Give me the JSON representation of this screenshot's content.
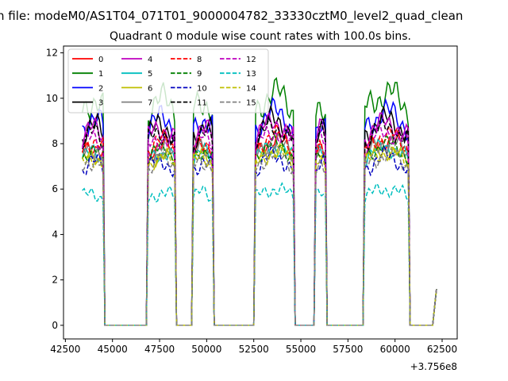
{
  "chart_data": {
    "type": "line",
    "suptitle": "n file: modeM0/AS1T04_071T01_9000004782_33330cztM0_level2_quad_clean",
    "title": "Quadrant 0 module wise count rates with 100.0s bins.",
    "xlabel": "",
    "ylabel": "",
    "x_offset_label": "+3.756e8",
    "xlim": [
      42400,
      63300
    ],
    "ylim": [
      -0.6,
      12.3
    ],
    "xticks": [
      42500,
      45000,
      47500,
      50000,
      52500,
      55000,
      57500,
      60000,
      62500
    ],
    "xtick_labels": [
      "42500",
      "45000",
      "47500",
      "50000",
      "52500",
      "55000",
      "57500",
      "60000",
      "62500"
    ],
    "yticks": [
      0,
      2,
      4,
      6,
      8,
      10,
      12
    ],
    "ytick_labels": [
      "0",
      "2",
      "4",
      "6",
      "8",
      "10",
      "12"
    ],
    "grid": false,
    "legend_placement": "top-left",
    "legend_ncol": 4,
    "segments": [
      [
        43400,
        44500
      ],
      [
        46900,
        48300
      ],
      [
        49300,
        50300
      ],
      [
        52600,
        54600
      ],
      [
        55800,
        56300
      ],
      [
        58400,
        60700
      ]
    ],
    "tail": [
      62000,
      62200
    ],
    "series": [
      {
        "name": "0",
        "color": "#ff0000",
        "dash": "solid",
        "level": 7.6,
        "amp": 0.45
      },
      {
        "name": "1",
        "color": "#008000",
        "dash": "solid",
        "level": 9.5,
        "amp": 0.8
      },
      {
        "name": "2",
        "color": "#0000ff",
        "dash": "solid",
        "level": 8.7,
        "amp": 0.7
      },
      {
        "name": "3",
        "color": "#000000",
        "dash": "solid",
        "level": 8.4,
        "amp": 0.65
      },
      {
        "name": "4",
        "color": "#bf00bf",
        "dash": "solid",
        "level": 8.3,
        "amp": 0.55
      },
      {
        "name": "5",
        "color": "#00bfbf",
        "dash": "solid",
        "level": 7.3,
        "amp": 0.45
      },
      {
        "name": "6",
        "color": "#bfbf00",
        "dash": "solid",
        "level": 7.2,
        "amp": 0.45
      },
      {
        "name": "7",
        "color": "#808080",
        "dash": "solid",
        "level": 7.5,
        "amp": 0.5
      },
      {
        "name": "8",
        "color": "#ff0000",
        "dash": "dashed",
        "level": 7.8,
        "amp": 0.5
      },
      {
        "name": "9",
        "color": "#008000",
        "dash": "dashed",
        "level": 7.4,
        "amp": 0.45
      },
      {
        "name": "10",
        "color": "#0000bf",
        "dash": "dashed",
        "level": 6.9,
        "amp": 0.5
      },
      {
        "name": "11",
        "color": "#000000",
        "dash": "dashed",
        "level": 8.1,
        "amp": 0.55
      },
      {
        "name": "12",
        "color": "#bf00bf",
        "dash": "dashed",
        "level": 7.9,
        "amp": 0.5
      },
      {
        "name": "13",
        "color": "#00bfbf",
        "dash": "dashed",
        "level": 5.6,
        "amp": 0.4
      },
      {
        "name": "14",
        "color": "#bfbf00",
        "dash": "dashed",
        "level": 7.1,
        "amp": 0.45
      },
      {
        "name": "15",
        "color": "#808080",
        "dash": "dashed",
        "level": 7.0,
        "amp": 0.5
      }
    ]
  }
}
